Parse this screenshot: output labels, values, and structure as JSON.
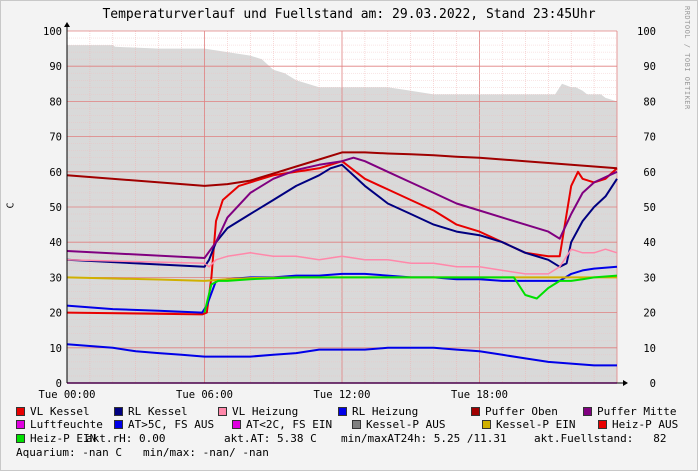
{
  "title": "Temperaturverlauf und Fuellstand am: 29.03.2022, Stand 23:45Uhr",
  "credit": "RRDTOOL / TOBI OETIKER",
  "chart_data": {
    "type": "line",
    "ylabel": "C",
    "ylim": [
      0,
      100
    ],
    "yticks": [
      "0",
      "10",
      "20",
      "30",
      "40",
      "50",
      "60",
      "70",
      "80",
      "90",
      "100"
    ],
    "xlim": [
      0,
      24
    ],
    "xtick_labels": [
      "Tue 00:00",
      "Tue 06:00",
      "Tue 12:00",
      "Tue 18:00"
    ],
    "xtick_hours": [
      0,
      6,
      12,
      18
    ],
    "grid": true,
    "legend_position": "bottom",
    "area": {
      "name": "Fuellstand",
      "color": "#d9d9d9",
      "x": [
        0,
        2,
        2.1,
        4,
        5,
        6,
        7,
        8,
        8.5,
        9,
        9.5,
        10,
        11,
        12,
        13,
        14,
        15,
        16,
        17,
        18,
        19,
        20,
        21,
        21.3,
        21.6,
        22,
        22.2,
        22.5,
        22.7,
        23,
        23.3,
        23.5,
        24
      ],
      "y": [
        96,
        96,
        95.5,
        95,
        95,
        95,
        94,
        93,
        92,
        89,
        88,
        86,
        84,
        84,
        84,
        84,
        83,
        82,
        82,
        82,
        82,
        82,
        82,
        82,
        85,
        84,
        84,
        83,
        82,
        82,
        82,
        81,
        80
      ]
    },
    "series": [
      {
        "name": "VL Kessel",
        "color": "#e80000",
        "width": 2,
        "x": [
          0,
          5.9,
          6.1,
          6.3,
          6.5,
          6.8,
          7.5,
          8,
          8.5,
          9,
          10,
          11,
          11.5,
          12,
          13,
          14,
          15,
          16,
          17,
          18,
          19,
          20,
          21,
          21.5,
          21.8,
          22,
          22.3,
          22.5,
          23,
          23.5,
          24
        ],
        "y": [
          20,
          19.5,
          20,
          30,
          46,
          52,
          56,
          57,
          58,
          59,
          60,
          61,
          62,
          63,
          58,
          55,
          52,
          49,
          45,
          43,
          40,
          37,
          36,
          36,
          48,
          56,
          60,
          58,
          57,
          58,
          61
        ]
      },
      {
        "name": "RL Kessel",
        "color": "#000080",
        "width": 2,
        "x": [
          0,
          6,
          6.2,
          6.5,
          7,
          8,
          9,
          10,
          11,
          11.5,
          12,
          13,
          14,
          15,
          16,
          17,
          18,
          19,
          20,
          21,
          21.5,
          21.8,
          22,
          22.5,
          23,
          23.5,
          24
        ],
        "y": [
          35,
          33,
          35,
          40,
          44,
          48,
          52,
          56,
          59,
          61,
          62,
          56,
          51,
          48,
          45,
          43,
          42,
          40,
          37,
          35,
          33,
          34,
          40,
          46,
          50,
          53,
          58
        ]
      },
      {
        "name": "VL Heizung",
        "color": "#ff88aa",
        "width": 1.5,
        "x": [
          0,
          6,
          6.2,
          6.5,
          7,
          8,
          9,
          10,
          11,
          12,
          13,
          14,
          15,
          16,
          17,
          18,
          19,
          20,
          21,
          21.5,
          22,
          22.5,
          23,
          23.5,
          24
        ],
        "y": [
          35,
          34,
          33,
          35,
          36,
          37,
          36,
          36,
          35,
          36,
          35,
          35,
          34,
          34,
          33,
          33,
          32,
          31,
          31,
          33,
          38,
          37,
          37,
          38,
          37
        ]
      },
      {
        "name": "RL Heizung",
        "color": "#0000e8",
        "width": 2,
        "x": [
          0,
          2,
          4,
          5.9,
          6.1,
          6.5,
          7,
          8,
          9,
          10,
          11,
          12,
          13,
          14,
          15,
          16,
          17,
          18,
          19,
          20,
          21,
          21.5,
          22,
          22.5,
          23,
          24
        ],
        "y": [
          22,
          21,
          20.5,
          20,
          22,
          29,
          29.5,
          30,
          30,
          30.5,
          30.5,
          31,
          31,
          30.5,
          30,
          30,
          29.5,
          29.5,
          29,
          29,
          29,
          29,
          31,
          32,
          32.5,
          33
        ]
      },
      {
        "name": "Puffer Oben",
        "color": "#a00000",
        "width": 2,
        "x": [
          0,
          6,
          7,
          8,
          9,
          10,
          11,
          12,
          13,
          14,
          15,
          16,
          17,
          18,
          19,
          20,
          21,
          22,
          23,
          24
        ],
        "y": [
          59,
          56,
          56.5,
          57.5,
          59.5,
          61.5,
          63.5,
          65.5,
          65.5,
          65.2,
          65,
          64.7,
          64.3,
          64,
          63.5,
          63,
          62.5,
          62,
          61.5,
          61
        ]
      },
      {
        "name": "Puffer Mitte",
        "color": "#800080",
        "width": 2,
        "x": [
          0,
          6,
          6.5,
          7,
          8,
          9,
          10,
          11,
          12,
          12.5,
          13,
          14,
          15,
          16,
          17,
          18,
          19,
          20,
          21,
          21.5,
          22,
          22.5,
          23,
          24
        ],
        "y": [
          37.5,
          35.5,
          40,
          47,
          54,
          58,
          60.5,
          62,
          63,
          64,
          63,
          60,
          57,
          54,
          51,
          49,
          47,
          45,
          43,
          41,
          48,
          54,
          57,
          60
        ]
      },
      {
        "name": "Luftfeuchte",
        "color": "#e000e0",
        "width": 1.5,
        "x": [
          0,
          24
        ],
        "y": [
          0,
          0
        ]
      },
      {
        "name": "AT>5C, FS AUS",
        "color": "#0000e8",
        "width": 2,
        "x": [
          0,
          1,
          2,
          3,
          4,
          5,
          6,
          7,
          8,
          9,
          10,
          11,
          12,
          13,
          14,
          15,
          16,
          17,
          18,
          19,
          20,
          21,
          22,
          23,
          24
        ],
        "y": [
          11,
          10.5,
          10,
          9,
          8.5,
          8,
          7.5,
          7.5,
          7.5,
          8,
          8.5,
          9.5,
          9.5,
          9.5,
          10,
          10,
          10,
          9.5,
          9,
          8,
          7,
          6,
          5.5,
          5,
          5
        ]
      },
      {
        "name": "AT<2C, FS EIN",
        "color": "#e000e0",
        "width": 1,
        "x": [],
        "y": []
      },
      {
        "name": "Kessel-P AUS",
        "color": "#808080",
        "width": 1,
        "x": [],
        "y": []
      },
      {
        "name": "Kessel-P EIN",
        "color": "#d0b000",
        "width": 2,
        "x": [
          0,
          2,
          4,
          6,
          7,
          8,
          10,
          12,
          14,
          16,
          18,
          20,
          22,
          24
        ],
        "y": [
          30,
          29.7,
          29.4,
          29,
          29.5,
          29.8,
          30,
          30,
          30,
          30,
          30,
          30,
          30,
          30
        ]
      },
      {
        "name": "Heiz-P AUS",
        "color": "#e80000",
        "width": 1,
        "x": [],
        "y": []
      },
      {
        "name": "Heiz-P EIN",
        "color": "#00e000",
        "width": 2,
        "x": [
          6,
          6.3,
          6.6,
          7,
          8,
          10,
          12,
          14,
          16,
          18,
          19.5,
          20,
          20.5,
          21,
          21.5,
          22,
          22.5,
          23,
          24
        ],
        "y": [
          20,
          28,
          29,
          29,
          29.5,
          30,
          30,
          30,
          30,
          30,
          30,
          25,
          24,
          27,
          29,
          29,
          29.5,
          30,
          30.5
        ]
      }
    ]
  },
  "legend": [
    {
      "label": "VL Kessel",
      "color": "#e80000"
    },
    {
      "label": "RL Kessel",
      "color": "#000080"
    },
    {
      "label": "VL Heizung",
      "color": "#ff88aa"
    },
    {
      "label": "RL Heizung",
      "color": "#0000e8"
    },
    {
      "label": "Puffer Oben",
      "color": "#a00000"
    },
    {
      "label": "Puffer Mitte",
      "color": "#800080"
    },
    {
      "label": "Luftfeuchte",
      "color": "#e000e0"
    },
    {
      "label": "AT>5C, FS AUS",
      "color": "#0000e8"
    },
    {
      "label": "AT<2C, FS EIN",
      "color": "#e000e0"
    },
    {
      "label": "Kessel-P AUS",
      "color": "#808080"
    },
    {
      "label": "Kessel-P EIN",
      "color": "#d0b000"
    },
    {
      "label": "Heiz-P AUS",
      "color": "#e80000"
    },
    {
      "label": "Heiz-P EIN",
      "color": "#00e000"
    }
  ],
  "info": {
    "rh": "akt.rH: 0.00",
    "at": "akt.AT: 5.38 C",
    "minmax_at": "min/maxAT24h: 5.25 /11.31",
    "fuellstand": "akt.Fuellstand:   82",
    "aquarium": "Aquarium: -nan C",
    "aquarium_minmax": "min/max: -nan/ -nan"
  }
}
